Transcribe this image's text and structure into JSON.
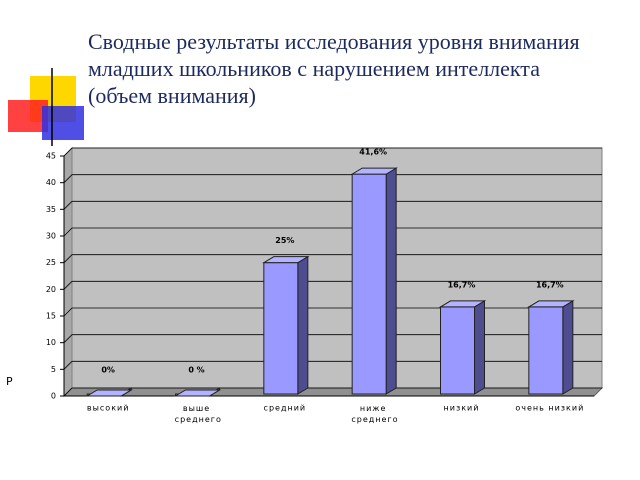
{
  "title": "Сводные результаты исследования уровня внимания младших школьников с нарушением интеллекта (объем внимания)",
  "footnote": "Р",
  "chart_data": {
    "type": "bar3d",
    "categories": [
      "высокий",
      "выше среднего",
      "средний",
      "ниже среднего",
      "низкий",
      "очень низкий"
    ],
    "values": [
      0,
      0,
      25,
      41.6,
      16.7,
      16.7
    ],
    "value_labels": [
      "0%",
      "0 %",
      "25%",
      "41,6%",
      "16,7%",
      "16,7%"
    ],
    "color": "#9999ff",
    "ylim": [
      0,
      45
    ],
    "yticks": [
      0,
      5,
      10,
      15,
      20,
      25,
      30,
      35,
      40,
      45
    ],
    "grid": true
  }
}
